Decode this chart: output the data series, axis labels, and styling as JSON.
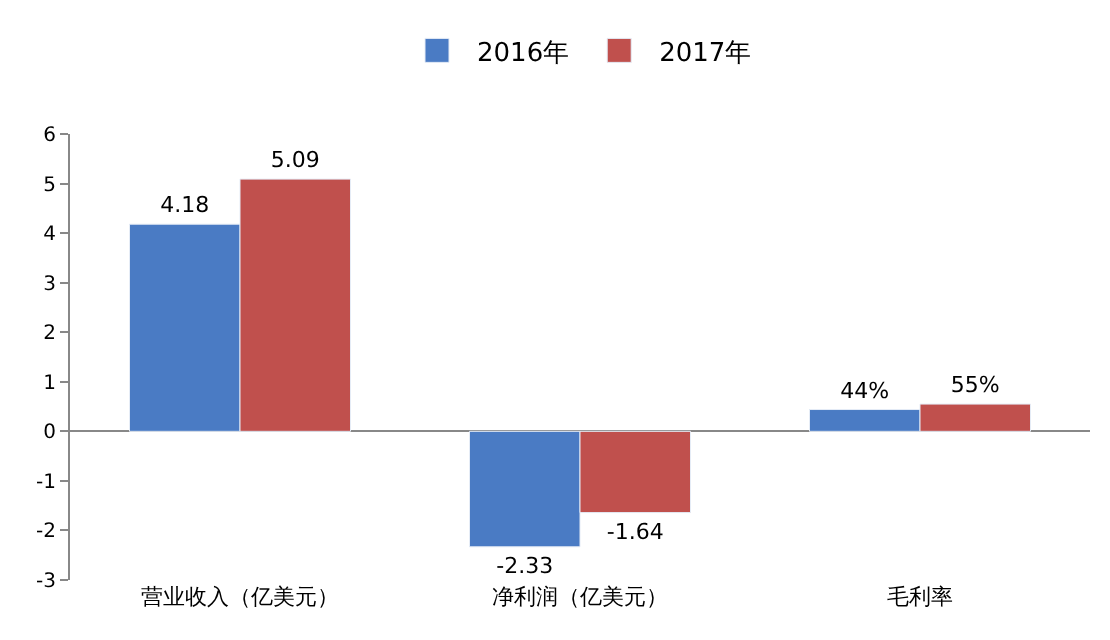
{
  "chart_data": {
    "type": "bar",
    "categories": [
      "营业收入（亿美元）",
      "净利润（亿美元）",
      "毛利率"
    ],
    "series": [
      {
        "name": "2016年",
        "color": "#4a7bc4",
        "values": [
          4.18,
          -2.33,
          0.44
        ],
        "value_labels": [
          "4.18",
          "-2.33",
          "44%"
        ]
      },
      {
        "name": "2017年",
        "color": "#c0504d",
        "values": [
          5.09,
          -1.64,
          0.55
        ],
        "value_labels": [
          "5.09",
          "-1.64",
          "55%"
        ]
      }
    ],
    "ylim": [
      -3,
      6
    ],
    "yticks": [
      -3,
      -2,
      -1,
      0,
      1,
      2,
      3,
      4,
      5,
      6
    ],
    "legend": "top"
  }
}
